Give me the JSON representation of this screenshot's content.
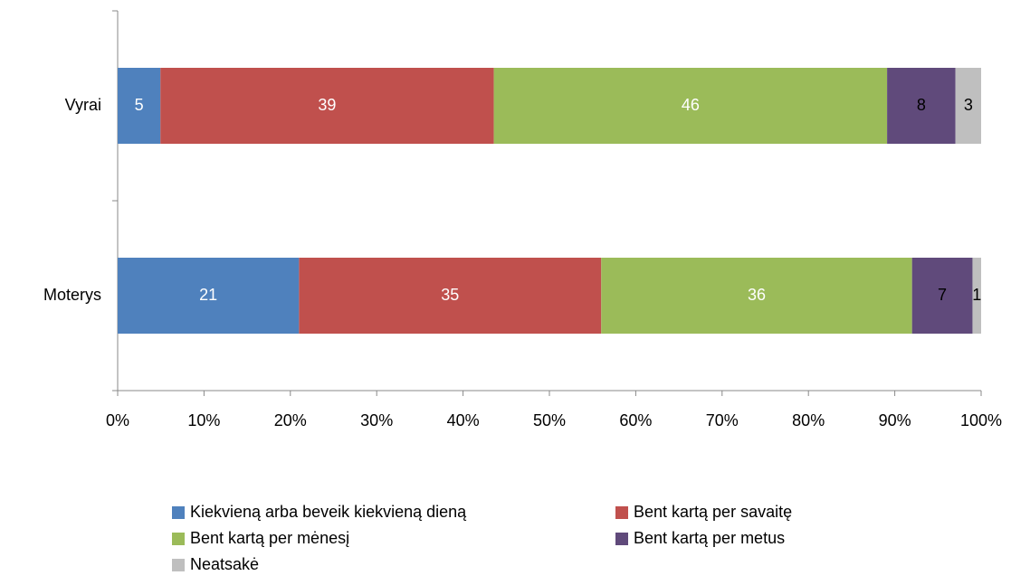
{
  "chart_data": {
    "type": "bar",
    "orientation": "horizontal",
    "stacking": "percent",
    "categories": [
      "Vyrai",
      "Moterys"
    ],
    "series": [
      {
        "name": "Kiekvieną arba beveik kiekvieną dieną",
        "color": "#4f81bd",
        "label_color": "#ffffff",
        "values": [
          5,
          21
        ]
      },
      {
        "name": "Bent kartą per savaitę",
        "color": "#c0504d",
        "label_color": "#ffffff",
        "values": [
          39,
          35
        ]
      },
      {
        "name": "Bent kartą per mėnesį",
        "color": "#9bbb59",
        "label_color": "#ffffff",
        "values": [
          46,
          36
        ]
      },
      {
        "name": "Bent kartą per metus",
        "color": "#604a7b",
        "label_color": "#000000",
        "values": [
          8,
          7
        ]
      },
      {
        "name": "Neatsakė",
        "color": "#bfbfbf",
        "label_color": "#000000",
        "values": [
          3,
          1
        ]
      }
    ],
    "xlim": [
      0,
      100
    ],
    "xticks": [
      {
        "value": 0,
        "label": "0%"
      },
      {
        "value": 10,
        "label": "10%"
      },
      {
        "value": 20,
        "label": "20%"
      },
      {
        "value": 30,
        "label": "30%"
      },
      {
        "value": 40,
        "label": "40%"
      },
      {
        "value": 50,
        "label": "50%"
      },
      {
        "value": 60,
        "label": "60%"
      },
      {
        "value": 70,
        "label": "70%"
      },
      {
        "value": 80,
        "label": "80%"
      },
      {
        "value": 90,
        "label": "90%"
      },
      {
        "value": 100,
        "label": "100%"
      }
    ],
    "legend": "bottom"
  }
}
